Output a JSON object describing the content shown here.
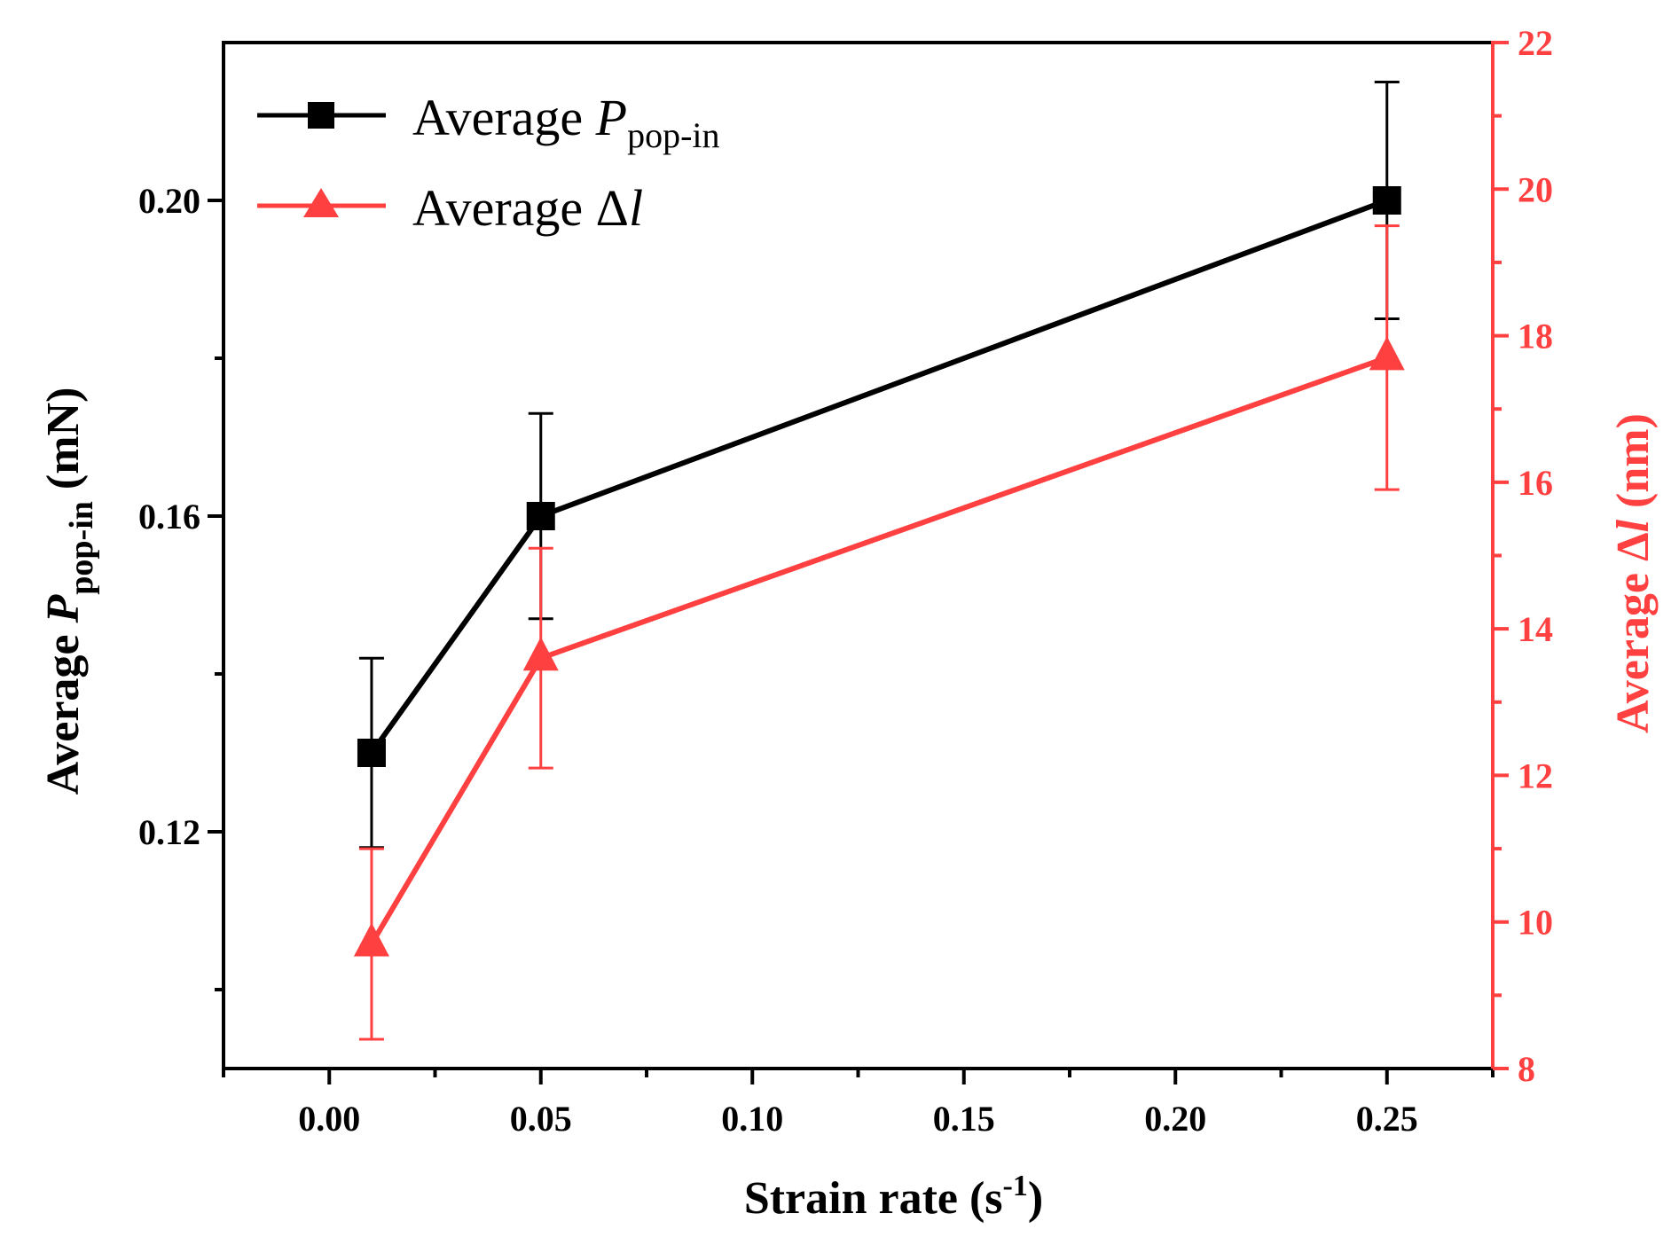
{
  "chart_data": {
    "type": "line",
    "x_axis": {
      "label_main": "Strain rate (s",
      "label_sup": "-1",
      "label_end": ")",
      "range": [
        -0.025,
        0.275
      ],
      "ticks": [
        0.0,
        0.05,
        0.1,
        0.15,
        0.2,
        0.25
      ],
      "tick_labels": [
        "0.00",
        "0.05",
        "0.10",
        "0.15",
        "0.20",
        "0.25"
      ]
    },
    "y_axis_left": {
      "label_prefix": "Average  ",
      "label_italic": "P",
      "label_sub": "pop-in",
      "label_suffix": " (mN)",
      "range": [
        0.09,
        0.22
      ],
      "ticks": [
        0.12,
        0.16,
        0.2
      ],
      "tick_labels": [
        "0.12",
        "0.16",
        "0.20"
      ],
      "color": "#000000"
    },
    "y_axis_right": {
      "label_prefix": "Average  Δ",
      "label_italic": "l",
      "label_suffix": " (nm)",
      "range": [
        8,
        22
      ],
      "ticks": [
        8,
        10,
        12,
        14,
        16,
        18,
        20,
        22
      ],
      "tick_labels": [
        "8",
        "10",
        "12",
        "14",
        "16",
        "18",
        "20",
        "22"
      ],
      "color": "#ff4040"
    },
    "series": [
      {
        "name_prefix": "Average ",
        "name_italic": "P",
        "name_sub": "pop-in",
        "axis": "left",
        "marker": "square",
        "color": "#000000",
        "x": [
          0.01,
          0.05,
          0.25
        ],
        "y": [
          0.13,
          0.16,
          0.2
        ],
        "err_low": [
          0.118,
          0.147,
          0.185
        ],
        "err_high": [
          0.142,
          0.173,
          0.215
        ]
      },
      {
        "name_prefix": "Average Δ",
        "name_italic": "l",
        "name_sub": "",
        "axis": "right",
        "marker": "triangle",
        "color": "#ff4040",
        "x": [
          0.01,
          0.05,
          0.25
        ],
        "y": [
          9.7,
          13.6,
          17.7
        ],
        "err_low": [
          8.4,
          12.1,
          15.9
        ],
        "err_high": [
          11.0,
          15.1,
          19.5
        ]
      }
    ],
    "legend_position": "top-left",
    "grid": false
  }
}
